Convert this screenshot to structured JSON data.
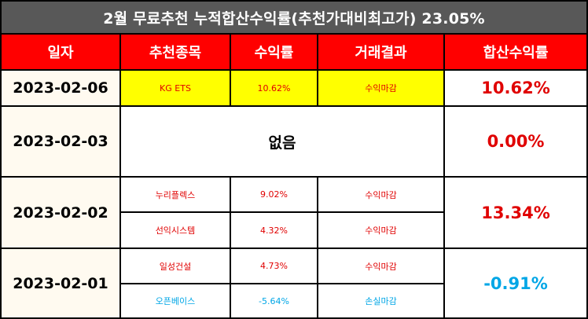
{
  "title": "2월 무료추천 누적합산수익률(추천가대비최고가) 23.05%",
  "headers": [
    "일자",
    "추천종목",
    "수익률",
    "거래결과",
    "합산수익률"
  ],
  "rows": [
    {
      "date": "2023-02-06",
      "total": "10.62%",
      "stocks": [
        {
          "name": "KG ETS",
          "rate": "10.62%",
          "result": "수익마감"
        }
      ]
    },
    {
      "date": "2023-02-03",
      "total": "0.00%",
      "none": "없음"
    },
    {
      "date": "2023-02-02",
      "total": "13.34%",
      "stocks": [
        {
          "name": "누리플렉스",
          "rate": "9.02%",
          "result": "수익마감"
        },
        {
          "name": "선익시스템",
          "rate": "4.32%",
          "result": "수익마감"
        }
      ]
    },
    {
      "date": "2023-02-01",
      "total": "-0.91%",
      "stocks": [
        {
          "name": "일성건설",
          "rate": "4.73%",
          "result": "수익마감"
        },
        {
          "name": "오픈베이스",
          "rate": "-5.64%",
          "result": "손실마감"
        }
      ]
    }
  ],
  "colors": {
    "header_bg": "#ff0000",
    "title_bg": "#585858",
    "highlight": "#ffff00",
    "gain": "#e00000",
    "loss": "#00a6e6",
    "date_bg": "#fffaf0"
  }
}
